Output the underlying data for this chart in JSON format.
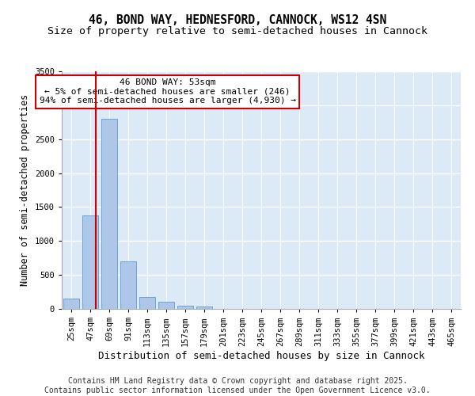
{
  "title_line1": "46, BOND WAY, HEDNESFORD, CANNOCK, WS12 4SN",
  "title_line2": "Size of property relative to semi-detached houses in Cannock",
  "xlabel": "Distribution of semi-detached houses by size in Cannock",
  "ylabel": "Number of semi-detached properties",
  "categories": [
    "25sqm",
    "47sqm",
    "69sqm",
    "91sqm",
    "113sqm",
    "135sqm",
    "157sqm",
    "179sqm",
    "201sqm",
    "223sqm",
    "245sqm",
    "267sqm",
    "289sqm",
    "311sqm",
    "333sqm",
    "355sqm",
    "377sqm",
    "399sqm",
    "421sqm",
    "443sqm",
    "465sqm"
  ],
  "values": [
    150,
    1380,
    2800,
    700,
    170,
    100,
    50,
    40,
    0,
    0,
    0,
    0,
    0,
    0,
    0,
    0,
    0,
    0,
    0,
    0,
    0
  ],
  "bar_color": "#aec6e8",
  "bar_edgecolor": "#5b9bd5",
  "vline_x": 1.28,
  "vline_color": "#cc0000",
  "annotation_title": "46 BOND WAY: 53sqm",
  "annotation_line1": "← 5% of semi-detached houses are smaller (246)",
  "annotation_line2": "94% of semi-detached houses are larger (4,930) →",
  "annotation_box_edgecolor": "#cc0000",
  "ylim": [
    0,
    3500
  ],
  "yticks": [
    0,
    500,
    1000,
    1500,
    2000,
    2500,
    3000,
    3500
  ],
  "background_color": "#dce9f7",
  "grid_color": "#ffffff",
  "footer_line1": "Contains HM Land Registry data © Crown copyright and database right 2025.",
  "footer_line2": "Contains public sector information licensed under the Open Government Licence v3.0.",
  "title_fontsize": 10.5,
  "subtitle_fontsize": 9.5,
  "axis_label_fontsize": 8.5,
  "tick_fontsize": 7.5,
  "annotation_fontsize": 8,
  "footer_fontsize": 7
}
